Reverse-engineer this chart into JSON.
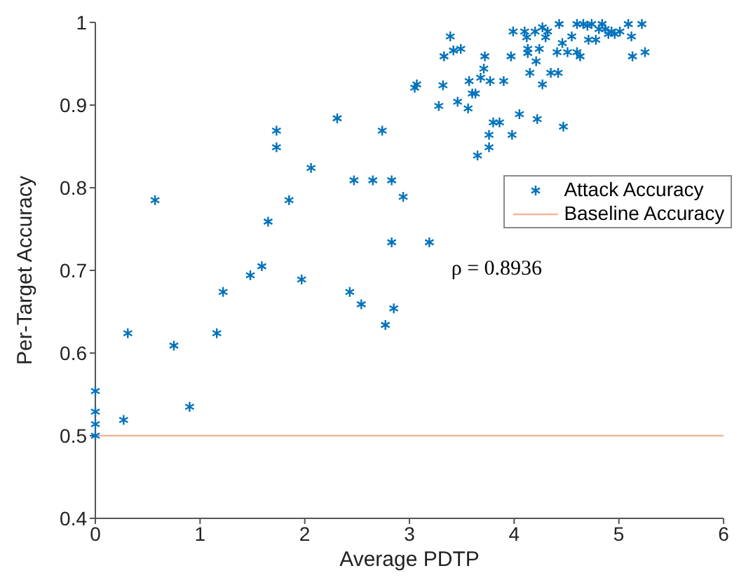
{
  "chart_data": {
    "type": "scatter",
    "xlabel": "Average PDTP",
    "ylabel": "Per-Target Accuracy",
    "xlim": [
      0,
      6
    ],
    "xticks": [
      0,
      1,
      2,
      3,
      4,
      5,
      6
    ],
    "ylim": [
      0.4,
      1
    ],
    "yticks": [
      0.4,
      0.5,
      0.6,
      0.7,
      0.8,
      0.9,
      1
    ],
    "grid": false,
    "legend": "right",
    "marker": "cross",
    "annotations": [
      "ρ = 0.8936"
    ],
    "ref_lines": [
      {
        "axis": "y",
        "value": 0.5,
        "label": "Baseline Accuracy",
        "color": "#f0b79a"
      }
    ],
    "series": [
      {
        "name": "Attack Accuracy",
        "color": "#0072bd",
        "x": [
          0,
          0,
          0,
          0,
          0.27,
          0.31,
          0.57,
          0.75,
          0.9,
          1.16,
          1.22,
          1.48,
          1.59,
          1.65,
          1.73,
          1.73,
          1.85,
          1.97,
          2.06,
          2.31,
          2.43,
          2.47,
          2.54,
          2.65,
          2.74,
          2.77,
          2.83,
          2.83,
          2.85,
          2.94,
          3.05,
          3.07,
          3.19,
          3.28,
          3.32,
          3.33,
          3.39,
          3.42,
          3.46,
          3.49,
          3.56,
          3.57,
          3.6,
          3.63,
          3.65,
          3.68,
          3.71,
          3.72,
          3.76,
          3.76,
          3.77,
          3.8,
          3.86,
          3.9,
          3.97,
          3.98,
          3.99,
          4.05,
          4.1,
          4.12,
          4.13,
          4.13,
          4.15,
          4.2,
          4.21,
          4.22,
          4.24,
          4.27,
          4.27,
          4.3,
          4.32,
          4.35,
          4.41,
          4.42,
          4.43,
          4.46,
          4.47,
          4.51,
          4.55,
          4.6,
          4.6,
          4.63,
          4.66,
          4.7,
          4.71,
          4.74,
          4.78,
          4.81,
          4.84,
          4.87,
          4.9,
          4.93,
          4.96,
          5.01,
          5.09,
          5.12,
          5.13,
          5.22,
          5.25
        ],
        "values": [
          0.554,
          0.529,
          0.514,
          0.5,
          0.519,
          0.624,
          0.785,
          0.609,
          0.535,
          0.624,
          0.674,
          0.694,
          0.705,
          0.759,
          0.869,
          0.849,
          0.785,
          0.689,
          0.824,
          0.884,
          0.674,
          0.809,
          0.659,
          0.809,
          0.869,
          0.634,
          0.809,
          0.734,
          0.654,
          0.789,
          0.921,
          0.925,
          0.734,
          0.899,
          0.924,
          0.959,
          0.983,
          0.966,
          0.904,
          0.968,
          0.896,
          0.929,
          0.914,
          0.914,
          0.839,
          0.933,
          0.944,
          0.959,
          0.849,
          0.864,
          0.929,
          0.879,
          0.879,
          0.929,
          0.959,
          0.864,
          0.989,
          0.889,
          0.989,
          0.982,
          0.968,
          0.963,
          0.939,
          0.989,
          0.953,
          0.883,
          0.968,
          0.994,
          0.925,
          0.982,
          0.989,
          0.939,
          0.964,
          0.939,
          0.998,
          0.975,
          0.874,
          0.964,
          0.983,
          0.964,
          0.998,
          0.959,
          0.998,
          0.996,
          0.979,
          0.998,
          0.979,
          0.992,
          0.998,
          0.992,
          0.986,
          0.989,
          0.986,
          0.989,
          0.998,
          0.983,
          0.959,
          0.998,
          0.964
        ]
      }
    ]
  }
}
